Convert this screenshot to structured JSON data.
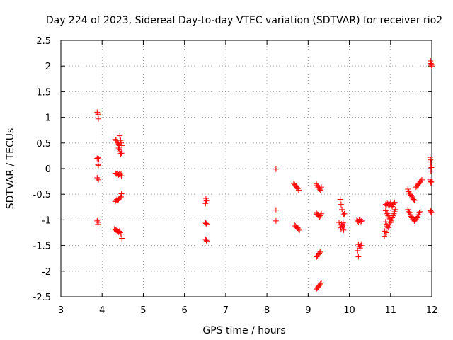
{
  "chart_data": {
    "type": "scatter",
    "title": "Day 224 of 2023, Sidereal Day-to-day VTEC variation (SDTVAR) for receiver rio2",
    "xlabel": "GPS time / hours",
    "ylabel": "SDTVAR / TECUs",
    "xlim": [
      3,
      12
    ],
    "ylim": [
      -2.5,
      2.5
    ],
    "xticks": [
      3,
      4,
      5,
      6,
      7,
      8,
      9,
      10,
      11,
      12
    ],
    "yticks": [
      -2.5,
      -2,
      -1.5,
      -1,
      -0.5,
      0,
      0.5,
      1,
      1.5,
      2,
      2.5
    ],
    "xtick_labels": [
      "3",
      "4",
      "5",
      "6",
      "7",
      "8",
      "9",
      "10",
      "11",
      "12"
    ],
    "ytick_labels": [
      "-2.5",
      "-2",
      "-1.5",
      "-1",
      "-0.5",
      "0",
      "0.5",
      "1",
      "1.5",
      "2",
      "2.5"
    ],
    "grid": true,
    "marker": "plus",
    "marker_color": "#ff0000",
    "series": [
      {
        "name": "SDTVAR",
        "points": [
          [
            3.88,
            1.1
          ],
          [
            3.9,
            1.06
          ],
          [
            3.91,
            0.97
          ],
          [
            3.88,
            0.2
          ],
          [
            3.9,
            0.21
          ],
          [
            3.92,
            0.19
          ],
          [
            3.9,
            0.08
          ],
          [
            3.91,
            0.06
          ],
          [
            3.88,
            -0.18
          ],
          [
            3.9,
            -0.2
          ],
          [
            3.91,
            -0.22
          ],
          [
            3.88,
            -1.02
          ],
          [
            3.9,
            -1.0
          ],
          [
            3.91,
            -1.05
          ],
          [
            3.9,
            -1.09
          ],
          [
            4.32,
            0.57
          ],
          [
            4.34,
            0.55
          ],
          [
            4.36,
            0.52
          ],
          [
            4.38,
            0.5
          ],
          [
            4.4,
            0.48
          ],
          [
            4.42,
            0.45
          ],
          [
            4.4,
            0.4
          ],
          [
            4.42,
            0.37
          ],
          [
            4.44,
            0.33
          ],
          [
            4.45,
            0.29
          ],
          [
            4.47,
            0.3
          ],
          [
            4.43,
            0.64
          ],
          [
            4.45,
            0.55
          ],
          [
            4.46,
            0.5
          ],
          [
            4.48,
            0.45
          ],
          [
            4.32,
            -0.09
          ],
          [
            4.34,
            -0.1
          ],
          [
            4.36,
            -0.11
          ],
          [
            4.38,
            -0.1
          ],
          [
            4.4,
            -0.12
          ],
          [
            4.42,
            -0.11
          ],
          [
            4.44,
            -0.12
          ],
          [
            4.46,
            -0.1
          ],
          [
            4.47,
            -0.14
          ],
          [
            4.32,
            -0.64
          ],
          [
            4.34,
            -0.62
          ],
          [
            4.36,
            -0.6
          ],
          [
            4.38,
            -0.62
          ],
          [
            4.4,
            -0.6
          ],
          [
            4.42,
            -0.58
          ],
          [
            4.44,
            -0.57
          ],
          [
            4.46,
            -0.55
          ],
          [
            4.47,
            -0.49
          ],
          [
            4.3,
            -1.18
          ],
          [
            4.32,
            -1.19
          ],
          [
            4.34,
            -1.2
          ],
          [
            4.36,
            -1.21
          ],
          [
            4.38,
            -1.22
          ],
          [
            4.4,
            -1.24
          ],
          [
            4.42,
            -1.22
          ],
          [
            4.44,
            -1.25
          ],
          [
            4.46,
            -1.28
          ],
          [
            4.48,
            -1.36
          ],
          [
            6.52,
            -0.58
          ],
          [
            6.53,
            -0.63
          ],
          [
            6.51,
            -0.68
          ],
          [
            6.51,
            -1.05
          ],
          [
            6.52,
            -1.07
          ],
          [
            6.54,
            -1.08
          ],
          [
            6.51,
            -1.38
          ],
          [
            6.53,
            -1.4
          ],
          [
            6.54,
            -1.42
          ],
          [
            8.22,
            -0.01
          ],
          [
            8.22,
            -0.81
          ],
          [
            8.22,
            -1.02
          ],
          [
            8.65,
            -0.29
          ],
          [
            8.67,
            -0.31
          ],
          [
            8.69,
            -0.33
          ],
          [
            8.71,
            -0.35
          ],
          [
            8.73,
            -0.37
          ],
          [
            8.75,
            -0.39
          ],
          [
            8.77,
            -0.42
          ],
          [
            8.67,
            -1.1
          ],
          [
            8.69,
            -1.12
          ],
          [
            8.71,
            -1.14
          ],
          [
            8.73,
            -1.15
          ],
          [
            8.75,
            -1.16
          ],
          [
            8.77,
            -1.18
          ],
          [
            8.79,
            -1.2
          ],
          [
            9.2,
            -0.3
          ],
          [
            9.22,
            -0.33
          ],
          [
            9.24,
            -0.36
          ],
          [
            9.26,
            -0.38
          ],
          [
            9.28,
            -0.4
          ],
          [
            9.3,
            -0.42
          ],
          [
            9.32,
            -0.36
          ],
          [
            9.2,
            -0.87
          ],
          [
            9.22,
            -0.89
          ],
          [
            9.24,
            -0.91
          ],
          [
            9.26,
            -0.93
          ],
          [
            9.28,
            -0.95
          ],
          [
            9.3,
            -0.92
          ],
          [
            9.32,
            -0.88
          ],
          [
            9.21,
            -1.72
          ],
          [
            9.23,
            -1.7
          ],
          [
            9.25,
            -1.67
          ],
          [
            9.27,
            -1.65
          ],
          [
            9.29,
            -1.63
          ],
          [
            9.31,
            -1.61
          ],
          [
            9.2,
            -2.35
          ],
          [
            9.22,
            -2.33
          ],
          [
            9.24,
            -2.31
          ],
          [
            9.26,
            -2.29
          ],
          [
            9.28,
            -2.27
          ],
          [
            9.3,
            -2.25
          ],
          [
            9.32,
            -2.23
          ],
          [
            9.78,
            -0.6
          ],
          [
            9.8,
            -0.7
          ],
          [
            9.82,
            -0.8
          ],
          [
            9.84,
            -0.85
          ],
          [
            9.86,
            -0.9
          ],
          [
            9.88,
            -0.88
          ],
          [
            9.75,
            -1.05
          ],
          [
            9.77,
            -1.1
          ],
          [
            9.79,
            -1.15
          ],
          [
            9.81,
            -1.08
          ],
          [
            9.83,
            -1.12
          ],
          [
            9.85,
            -1.06
          ],
          [
            9.87,
            -1.14
          ],
          [
            9.89,
            -1.1
          ],
          [
            9.8,
            -1.18
          ],
          [
            9.86,
            -1.2
          ],
          [
            10.18,
            -1.0
          ],
          [
            10.2,
            -1.02
          ],
          [
            10.22,
            -1.04
          ],
          [
            10.24,
            -1.01
          ],
          [
            10.26,
            -0.99
          ],
          [
            10.28,
            -1.03
          ],
          [
            10.3,
            -1.02
          ],
          [
            10.22,
            -1.48
          ],
          [
            10.24,
            -1.52
          ],
          [
            10.26,
            -1.55
          ],
          [
            10.28,
            -1.5
          ],
          [
            10.3,
            -1.47
          ],
          [
            10.2,
            -1.6
          ],
          [
            10.22,
            -1.72
          ],
          [
            10.88,
            -0.7
          ],
          [
            10.9,
            -0.72
          ],
          [
            10.92,
            -0.68
          ],
          [
            10.94,
            -0.7
          ],
          [
            10.96,
            -0.66
          ],
          [
            10.98,
            -0.7
          ],
          [
            11.0,
            -0.68
          ],
          [
            11.02,
            -0.72
          ],
          [
            11.04,
            -0.74
          ],
          [
            11.06,
            -0.7
          ],
          [
            11.08,
            -0.68
          ],
          [
            11.1,
            -0.66
          ],
          [
            10.88,
            -0.82
          ],
          [
            10.9,
            -0.85
          ],
          [
            10.92,
            -0.88
          ],
          [
            10.94,
            -0.92
          ],
          [
            10.96,
            -0.95
          ],
          [
            10.98,
            -0.98
          ],
          [
            11.0,
            -1.0
          ],
          [
            11.02,
            -1.02
          ],
          [
            10.88,
            -1.04
          ],
          [
            10.9,
            -1.08
          ],
          [
            10.92,
            -1.12
          ],
          [
            10.94,
            -1.15
          ],
          [
            10.96,
            -1.18
          ],
          [
            10.98,
            -1.1
          ],
          [
            11.0,
            -1.05
          ],
          [
            11.02,
            -1.0
          ],
          [
            11.04,
            -0.96
          ],
          [
            11.06,
            -0.92
          ],
          [
            11.08,
            -0.88
          ],
          [
            11.1,
            -0.84
          ],
          [
            11.12,
            -0.8
          ],
          [
            10.86,
            -1.22
          ],
          [
            10.88,
            -1.28
          ],
          [
            10.9,
            -1.25
          ],
          [
            10.85,
            -1.32
          ],
          [
            11.42,
            -0.4
          ],
          [
            11.44,
            -0.45
          ],
          [
            11.46,
            -0.48
          ],
          [
            11.48,
            -0.5
          ],
          [
            11.5,
            -0.52
          ],
          [
            11.52,
            -0.55
          ],
          [
            11.54,
            -0.58
          ],
          [
            11.56,
            -0.6
          ],
          [
            11.58,
            -0.62
          ],
          [
            11.42,
            -0.8
          ],
          [
            11.44,
            -0.84
          ],
          [
            11.46,
            -0.86
          ],
          [
            11.48,
            -0.9
          ],
          [
            11.5,
            -0.93
          ],
          [
            11.52,
            -0.96
          ],
          [
            11.54,
            -0.98
          ],
          [
            11.56,
            -1.0
          ],
          [
            11.58,
            -1.02
          ],
          [
            11.6,
            -1.0
          ],
          [
            11.62,
            -0.98
          ],
          [
            11.64,
            -0.96
          ],
          [
            11.66,
            -0.94
          ],
          [
            11.68,
            -0.9
          ],
          [
            11.7,
            -0.86
          ],
          [
            11.72,
            -0.84
          ],
          [
            11.62,
            -0.36
          ],
          [
            11.64,
            -0.34
          ],
          [
            11.66,
            -0.32
          ],
          [
            11.68,
            -0.3
          ],
          [
            11.7,
            -0.28
          ],
          [
            11.72,
            -0.26
          ],
          [
            11.74,
            -0.24
          ],
          [
            11.76,
            -0.22
          ],
          [
            11.97,
            2.1
          ],
          [
            11.98,
            2.05
          ],
          [
            11.99,
            2.02
          ],
          [
            12.0,
            2.0
          ],
          [
            11.96,
            0.22
          ],
          [
            11.97,
            0.17
          ],
          [
            11.98,
            0.13
          ],
          [
            11.97,
            0.05
          ],
          [
            11.99,
            0.02
          ],
          [
            11.98,
            -0.05
          ],
          [
            11.96,
            -0.22
          ],
          [
            11.97,
            -0.25
          ],
          [
            11.98,
            -0.28
          ],
          [
            11.99,
            -0.26
          ],
          [
            11.97,
            -0.82
          ],
          [
            11.98,
            -0.84
          ],
          [
            11.99,
            -0.86
          ]
        ]
      }
    ]
  }
}
